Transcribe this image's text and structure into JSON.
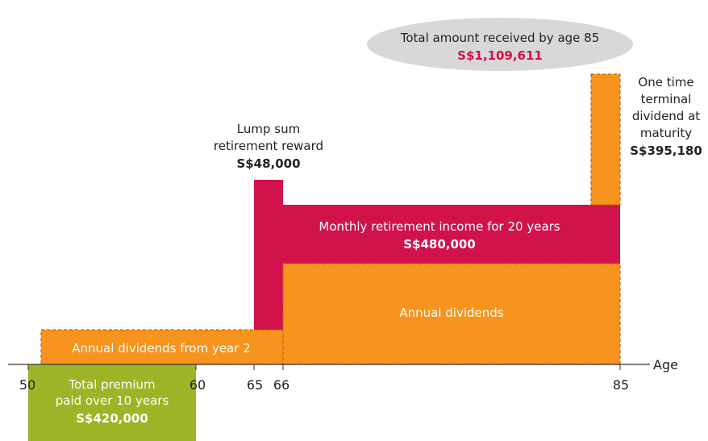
{
  "total": {
    "title": "Total amount received by age 85",
    "amount": "S$1,109,611"
  },
  "lump_sum": {
    "line1": "Lump sum",
    "line2": "retirement reward",
    "amount": "S$48,000"
  },
  "terminal": {
    "line1": "One time",
    "line2": "terminal",
    "line3": "dividend at",
    "line4": "maturity",
    "amount": "S$395,180"
  },
  "monthly": {
    "label": "Monthly retirement income for 20 years",
    "amount": "S$480,000"
  },
  "annual_dividends": {
    "label": "Annual dividends"
  },
  "annual_dividends_early": {
    "label": "Annual dividends from year 2"
  },
  "premium": {
    "line1": "Total premium",
    "line2": "paid over 10 years",
    "amount": "S$420,000"
  },
  "axis": {
    "label": "Age",
    "ticks": [
      "50",
      "60",
      "65",
      "66",
      "85"
    ]
  },
  "colors": {
    "orange": "#f7941d",
    "crimson": "#d2124a",
    "green": "#9bb526",
    "ellipse": "#d8d8d8",
    "amount_text": "#d2124a"
  }
}
